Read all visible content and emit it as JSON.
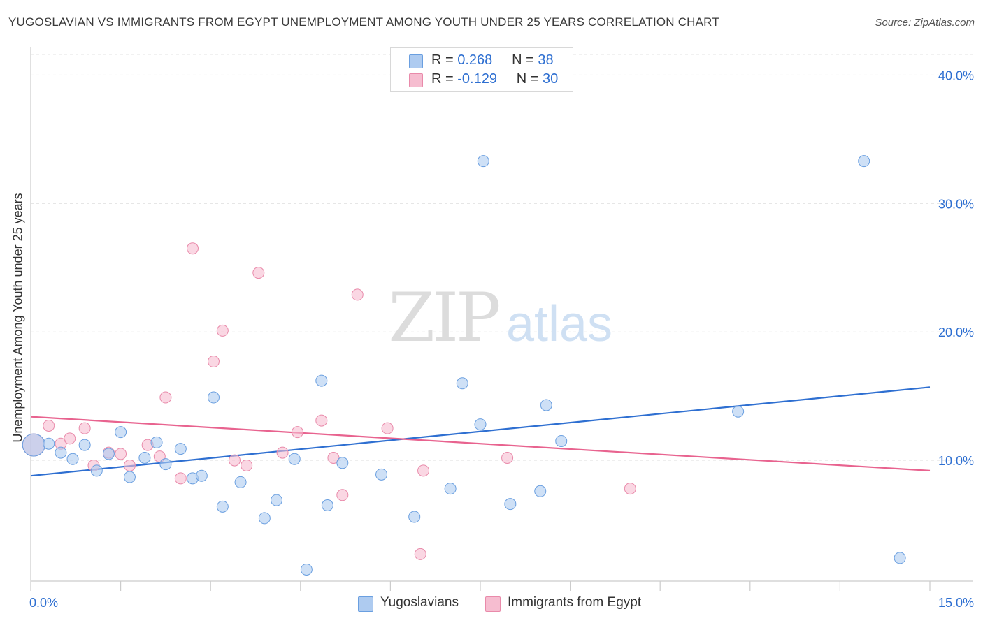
{
  "title": "YUGOSLAVIAN VS IMMIGRANTS FROM EGYPT UNEMPLOYMENT AMONG YOUTH UNDER 25 YEARS CORRELATION CHART",
  "source": "Source: ZipAtlas.com",
  "watermark": {
    "zip": "ZIP",
    "atlas": "atlas"
  },
  "legend": {
    "rows": [
      {
        "r_label": "R = ",
        "r_value": "0.268",
        "n_label": "N = ",
        "n_value": "38"
      },
      {
        "r_label": "R = ",
        "r_value": "-0.129",
        "n_label": "N = ",
        "n_value": "30"
      }
    ]
  },
  "colors": {
    "blue_fill": "#aecbf0",
    "blue_stroke": "#6a9fe0",
    "blue_line": "#2e6fd1",
    "pink_fill": "#f6bdd0",
    "pink_stroke": "#e98aaa",
    "pink_line": "#e8638f",
    "axis_text": "#2e6fd1",
    "grid": "#e3e3e3"
  },
  "chart_data": {
    "type": "scatter",
    "title": "YUGOSLAVIAN VS IMMIGRANTS FROM EGYPT UNEMPLOYMENT AMONG YOUTH UNDER 25 YEARS CORRELATION CHART",
    "xlabel": "",
    "ylabel": "Unemployment Among Youth under 25 years",
    "xlim": [
      0,
      15
    ],
    "ylim": [
      0.6,
      41.6
    ],
    "x_tick_labels": [
      "0.0%",
      "15.0%"
    ],
    "y_ticks": [
      10,
      20,
      30,
      40
    ],
    "y_tick_labels": [
      "10.0%",
      "20.0%",
      "30.0%",
      "40.0%"
    ],
    "grid": true,
    "series": [
      {
        "name": "Yugoslavians",
        "r": 0.268,
        "n": 38,
        "trend": {
          "x": [
            0,
            15
          ],
          "y": [
            8.8,
            15.7
          ]
        },
        "points": [
          {
            "x": 0.05,
            "y": 11.2,
            "big": true
          },
          {
            "x": 0.3,
            "y": 11.3
          },
          {
            "x": 0.5,
            "y": 10.6
          },
          {
            "x": 0.7,
            "y": 10.1
          },
          {
            "x": 0.9,
            "y": 11.2
          },
          {
            "x": 1.1,
            "y": 9.2
          },
          {
            "x": 1.3,
            "y": 10.5
          },
          {
            "x": 1.5,
            "y": 12.2
          },
          {
            "x": 1.65,
            "y": 8.7
          },
          {
            "x": 1.9,
            "y": 10.2
          },
          {
            "x": 2.1,
            "y": 11.4
          },
          {
            "x": 2.25,
            "y": 9.7
          },
          {
            "x": 2.5,
            "y": 10.9
          },
          {
            "x": 2.7,
            "y": 8.6
          },
          {
            "x": 2.85,
            "y": 8.8
          },
          {
            "x": 3.05,
            "y": 14.9
          },
          {
            "x": 3.2,
            "y": 6.4
          },
          {
            "x": 3.5,
            "y": 8.3
          },
          {
            "x": 3.9,
            "y": 5.5
          },
          {
            "x": 4.1,
            "y": 6.9
          },
          {
            "x": 4.4,
            "y": 10.1
          },
          {
            "x": 4.6,
            "y": 1.5
          },
          {
            "x": 4.85,
            "y": 16.2
          },
          {
            "x": 4.95,
            "y": 6.5
          },
          {
            "x": 5.2,
            "y": 9.8
          },
          {
            "x": 5.85,
            "y": 8.9
          },
          {
            "x": 6.4,
            "y": 5.6
          },
          {
            "x": 7.0,
            "y": 7.8
          },
          {
            "x": 7.2,
            "y": 16.0
          },
          {
            "x": 7.5,
            "y": 12.8
          },
          {
            "x": 7.55,
            "y": 33.3
          },
          {
            "x": 8.0,
            "y": 6.6
          },
          {
            "x": 8.5,
            "y": 7.6
          },
          {
            "x": 8.6,
            "y": 14.3
          },
          {
            "x": 8.85,
            "y": 11.5
          },
          {
            "x": 11.8,
            "y": 13.8
          },
          {
            "x": 13.9,
            "y": 33.3
          },
          {
            "x": 14.5,
            "y": 2.4
          }
        ]
      },
      {
        "name": "Immigrants from Egypt",
        "r": -0.129,
        "n": 30,
        "trend": {
          "x": [
            0,
            15
          ],
          "y": [
            13.4,
            9.2
          ]
        },
        "points": [
          {
            "x": 0.05,
            "y": 11.2,
            "big": true
          },
          {
            "x": 0.3,
            "y": 12.7
          },
          {
            "x": 0.5,
            "y": 11.3
          },
          {
            "x": 0.65,
            "y": 11.7
          },
          {
            "x": 0.9,
            "y": 12.5
          },
          {
            "x": 1.05,
            "y": 9.6
          },
          {
            "x": 1.3,
            "y": 10.6
          },
          {
            "x": 1.5,
            "y": 10.5
          },
          {
            "x": 1.65,
            "y": 9.6
          },
          {
            "x": 1.95,
            "y": 11.2
          },
          {
            "x": 2.15,
            "y": 10.3
          },
          {
            "x": 2.25,
            "y": 14.9
          },
          {
            "x": 2.5,
            "y": 8.6
          },
          {
            "x": 2.7,
            "y": 26.5
          },
          {
            "x": 3.05,
            "y": 17.7
          },
          {
            "x": 3.2,
            "y": 20.1
          },
          {
            "x": 3.4,
            "y": 10.0
          },
          {
            "x": 3.6,
            "y": 9.6
          },
          {
            "x": 3.8,
            "y": 24.6
          },
          {
            "x": 4.2,
            "y": 10.6
          },
          {
            "x": 4.45,
            "y": 12.2
          },
          {
            "x": 4.85,
            "y": 13.1
          },
          {
            "x": 5.05,
            "y": 10.2
          },
          {
            "x": 5.2,
            "y": 7.3
          },
          {
            "x": 5.45,
            "y": 22.9
          },
          {
            "x": 5.95,
            "y": 12.5
          },
          {
            "x": 6.5,
            "y": 2.7
          },
          {
            "x": 6.55,
            "y": 9.2
          },
          {
            "x": 7.95,
            "y": 10.2
          },
          {
            "x": 10.0,
            "y": 7.8
          }
        ]
      }
    ]
  }
}
